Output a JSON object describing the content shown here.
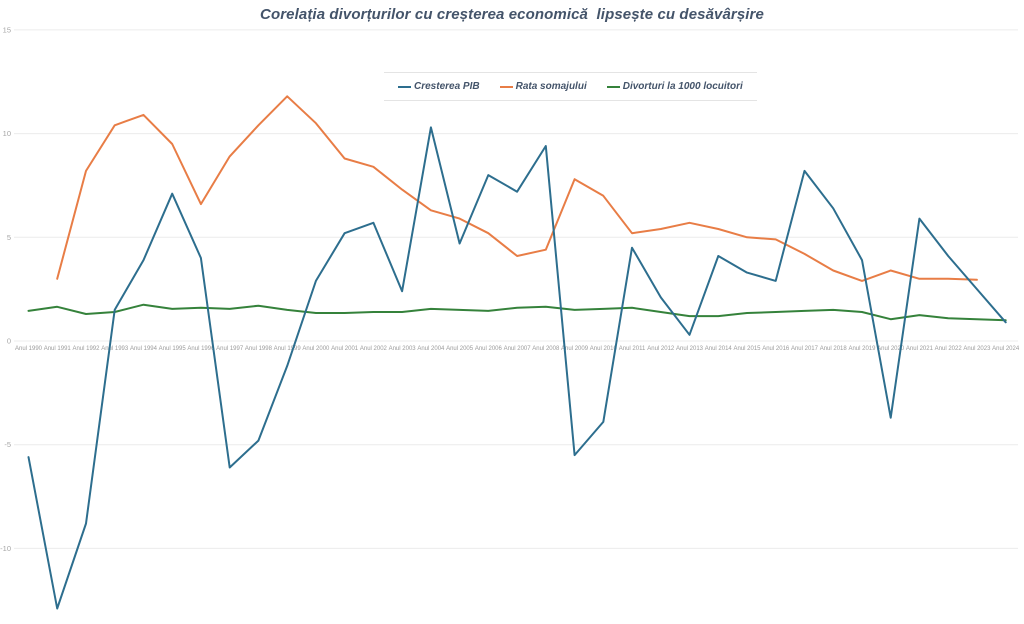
{
  "title": "Corelația divorțurilor cu creșterea economică  lipsește cu desăvârșire",
  "colors": {
    "pib": "#2d6e8e",
    "somaj": "#e87d46",
    "divort": "#35823b",
    "text_dark": "#44546a",
    "tick_text": "#9b9b9b",
    "gridline": "#ececec"
  },
  "chart_data": {
    "type": "line",
    "title": "Corelația divorțurilor cu creșterea economică  lipsește cu desăvârșire",
    "xlabel": "",
    "ylabel": "",
    "ylim": [
      -13.5,
      16.5
    ],
    "y_ticks": [
      15,
      10,
      5,
      0,
      -5,
      -10
    ],
    "grid": "horizontal",
    "legend_position": "top-center",
    "categories": [
      "Anul 1990",
      "Anul 1991",
      "Anul 1992",
      "Anul 1993",
      "Anul 1994",
      "Anul 1995",
      "Anul 1996",
      "Anul 1997",
      "Anul 1998",
      "Anul 1999",
      "Anul 2000",
      "Anul 2001",
      "Anul 2002",
      "Anul 2003",
      "Anul 2004",
      "Anul 2005",
      "Anul 2006",
      "Anul 2007",
      "Anul 2008",
      "Anul 2009",
      "Anul 2010",
      "Anul 2011",
      "Anul 2012",
      "Anul 2013",
      "Anul 2014",
      "Anul 2015",
      "Anul 2016",
      "Anul 2017",
      "Anul 2018",
      "Anul 2019",
      "Anul 2020",
      "Anul 2021",
      "Anul 2022",
      "Anul 2023",
      "Anul 2024"
    ],
    "series": [
      {
        "name": "Cresterea PIB",
        "color": "#2d6e8e",
        "values": [
          -5.6,
          -12.9,
          -8.8,
          1.5,
          3.9,
          7.1,
          4.0,
          -6.1,
          -4.8,
          -1.2,
          2.9,
          5.2,
          5.7,
          2.4,
          10.3,
          4.7,
          8.0,
          7.2,
          9.4,
          -5.5,
          -3.9,
          4.5,
          2.1,
          0.3,
          4.1,
          3.3,
          2.9,
          8.2,
          6.4,
          3.9,
          -3.7,
          5.9,
          4.1,
          2.5,
          0.9
        ]
      },
      {
        "name": "Rata somajului",
        "color": "#e87d46",
        "values": [
          null,
          3.0,
          8.2,
          10.4,
          10.9,
          9.5,
          6.6,
          8.9,
          10.4,
          11.8,
          10.5,
          8.8,
          8.4,
          7.3,
          6.3,
          5.9,
          5.2,
          4.1,
          4.4,
          7.8,
          7.0,
          5.2,
          5.4,
          5.7,
          5.4,
          5.0,
          4.9,
          4.2,
          3.4,
          2.9,
          3.4,
          3.0,
          3.0,
          2.95,
          null
        ]
      },
      {
        "name": "Divorturi la 1000 locuitori",
        "color": "#35823b",
        "values": [
          1.45,
          1.65,
          1.3,
          1.4,
          1.75,
          1.55,
          1.6,
          1.55,
          1.7,
          1.5,
          1.35,
          1.35,
          1.4,
          1.4,
          1.55,
          1.5,
          1.45,
          1.6,
          1.65,
          1.5,
          1.55,
          1.6,
          1.4,
          1.2,
          1.2,
          1.35,
          1.4,
          1.45,
          1.5,
          1.4,
          1.05,
          1.25,
          1.1,
          1.05,
          1.0
        ]
      }
    ]
  }
}
